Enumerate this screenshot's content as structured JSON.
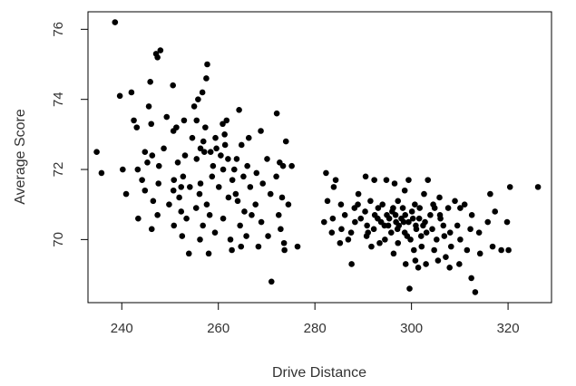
{
  "chart_data": {
    "type": "scatter",
    "title": "",
    "xlabel": "Drive Distance",
    "ylabel": "Average Score",
    "xlim": [
      233,
      329
    ],
    "ylim": [
      68.2,
      76.5
    ],
    "xticks": [
      240,
      260,
      280,
      300,
      320
    ],
    "yticks": [
      70,
      72,
      74,
      76
    ],
    "grid": false,
    "legend": "none",
    "marker_color": "#000000",
    "series": [
      {
        "points": [
          [
            238.6,
            76.2
          ],
          [
            248.0,
            75.4
          ],
          [
            247.1,
            75.3
          ],
          [
            247.4,
            75.2
          ],
          [
            257.7,
            75.0
          ],
          [
            257.5,
            74.6
          ],
          [
            245.9,
            74.5
          ],
          [
            250.6,
            74.4
          ],
          [
            256.7,
            74.2
          ],
          [
            242.0,
            74.2
          ],
          [
            239.6,
            74.1
          ],
          [
            255.8,
            74.0
          ],
          [
            255.0,
            73.8
          ],
          [
            245.6,
            73.8
          ],
          [
            264.3,
            73.7
          ],
          [
            272.1,
            73.6
          ],
          [
            249.3,
            73.5
          ],
          [
            242.5,
            73.4
          ],
          [
            255.5,
            73.4
          ],
          [
            252.9,
            73.4
          ],
          [
            246.1,
            73.3
          ],
          [
            260.9,
            73.3
          ],
          [
            261.7,
            73.4
          ],
          [
            257.3,
            73.2
          ],
          [
            243.1,
            73.2
          ],
          [
            250.7,
            73.1
          ],
          [
            268.8,
            73.1
          ],
          [
            266.3,
            72.9
          ],
          [
            259.4,
            72.9
          ],
          [
            261.3,
            73.0
          ],
          [
            274.0,
            72.8
          ],
          [
            264.8,
            72.7
          ],
          [
            256.3,
            72.6
          ],
          [
            248.7,
            72.6
          ],
          [
            257.1,
            72.5
          ],
          [
            244.8,
            72.5
          ],
          [
            258.4,
            72.5
          ],
          [
            234.8,
            72.5
          ],
          [
            260.5,
            72.4
          ],
          [
            253.1,
            72.4
          ],
          [
            246.3,
            72.4
          ],
          [
            263.8,
            72.3
          ],
          [
            255.5,
            72.3
          ],
          [
            270.1,
            72.3
          ],
          [
            262.0,
            72.3
          ],
          [
            272.7,
            72.2
          ],
          [
            245.3,
            72.2
          ],
          [
            251.6,
            72.2
          ],
          [
            247.7,
            72.1
          ],
          [
            273.4,
            72.1
          ],
          [
            266.0,
            72.1
          ],
          [
            275.2,
            72.1
          ],
          [
            258.9,
            72.1
          ],
          [
            240.2,
            72.0
          ],
          [
            243.3,
            72.0
          ],
          [
            261.0,
            72.0
          ],
          [
            267.9,
            71.9
          ],
          [
            235.8,
            71.9
          ],
          [
            252.7,
            71.8
          ],
          [
            258.7,
            71.8
          ],
          [
            265.2,
            71.8
          ],
          [
            272.0,
            71.8
          ],
          [
            244.2,
            71.7
          ],
          [
            250.8,
            71.7
          ],
          [
            262.9,
            71.7
          ],
          [
            269.2,
            71.6
          ],
          [
            256.3,
            71.6
          ],
          [
            247.6,
            71.6
          ],
          [
            252.3,
            71.5
          ],
          [
            266.6,
            71.5
          ],
          [
            254.1,
            71.5
          ],
          [
            260.1,
            71.5
          ],
          [
            244.8,
            71.4
          ],
          [
            250.7,
            71.4
          ],
          [
            270.8,
            71.3
          ],
          [
            263.6,
            71.3
          ],
          [
            240.9,
            71.3
          ],
          [
            256.1,
            71.3
          ],
          [
            273.2,
            71.2
          ],
          [
            251.9,
            71.2
          ],
          [
            262.1,
            71.2
          ],
          [
            246.5,
            71.1
          ],
          [
            264.0,
            71.1
          ],
          [
            257.6,
            71.0
          ],
          [
            249.8,
            71.0
          ],
          [
            267.7,
            71.0
          ],
          [
            274.5,
            71.0
          ],
          [
            255.4,
            70.9
          ],
          [
            252.3,
            70.8
          ],
          [
            265.4,
            70.8
          ],
          [
            247.4,
            70.7
          ],
          [
            266.9,
            70.7
          ],
          [
            272.5,
            70.7
          ],
          [
            258.2,
            70.7
          ],
          [
            243.4,
            70.6
          ],
          [
            253.4,
            70.6
          ],
          [
            261.0,
            70.6
          ],
          [
            268.9,
            70.5
          ],
          [
            250.8,
            70.4
          ],
          [
            264.5,
            70.4
          ],
          [
            256.8,
            70.4
          ],
          [
            272.9,
            70.3
          ],
          [
            246.2,
            70.3
          ],
          [
            259.3,
            70.2
          ],
          [
            252.5,
            70.1
          ],
          [
            270.3,
            70.1
          ],
          [
            265.8,
            70.1
          ],
          [
            262.5,
            70.0
          ],
          [
            256.2,
            70.0
          ],
          [
            273.6,
            69.9
          ],
          [
            276.4,
            69.8
          ],
          [
            268.3,
            69.8
          ],
          [
            264.7,
            69.8
          ],
          [
            262.8,
            69.7
          ],
          [
            253.9,
            69.6
          ],
          [
            258.0,
            69.6
          ],
          [
            273.7,
            69.7
          ],
          [
            271.0,
            68.8
          ],
          [
            263.3,
            72.0
          ],
          [
            259.6,
            72.6
          ],
          [
            251.3,
            73.2
          ],
          [
            256.9,
            72.8
          ],
          [
            254.6,
            72.9
          ],
          [
            261.4,
            72.7
          ],
          [
            282.3,
            71.9
          ],
          [
            284.3,
            71.7
          ],
          [
            290.5,
            71.8
          ],
          [
            292.3,
            71.7
          ],
          [
            294.8,
            71.7
          ],
          [
            299.4,
            71.7
          ],
          [
            303.4,
            71.7
          ],
          [
            283.9,
            71.5
          ],
          [
            296.5,
            71.6
          ],
          [
            298.6,
            71.4
          ],
          [
            316.3,
            71.3
          ],
          [
            320.4,
            71.5
          ],
          [
            326.2,
            71.5
          ],
          [
            289.0,
            71.3
          ],
          [
            302.6,
            71.3
          ],
          [
            305.8,
            71.2
          ],
          [
            309.0,
            71.1
          ],
          [
            311.0,
            71.0
          ],
          [
            282.6,
            71.1
          ],
          [
            285.4,
            71.0
          ],
          [
            291.5,
            71.1
          ],
          [
            294.0,
            71.0
          ],
          [
            297.2,
            71.1
          ],
          [
            300.7,
            71.0
          ],
          [
            304.5,
            71.0
          ],
          [
            307.6,
            70.9
          ],
          [
            288.2,
            70.9
          ],
          [
            293.1,
            70.9
          ],
          [
            296.0,
            70.8
          ],
          [
            301.7,
            70.9
          ],
          [
            310.1,
            70.9
          ],
          [
            317.3,
            70.8
          ],
          [
            286.2,
            70.7
          ],
          [
            290.4,
            70.8
          ],
          [
            298.7,
            70.7
          ],
          [
            303.9,
            70.7
          ],
          [
            312.5,
            70.7
          ],
          [
            283.7,
            70.6
          ],
          [
            292.4,
            70.7
          ],
          [
            295.4,
            70.6
          ],
          [
            297.9,
            70.6
          ],
          [
            300.3,
            70.6
          ],
          [
            306.0,
            70.6
          ],
          [
            281.9,
            70.5
          ],
          [
            288.3,
            70.5
          ],
          [
            293.7,
            70.5
          ],
          [
            296.8,
            70.5
          ],
          [
            299.4,
            70.5
          ],
          [
            302.4,
            70.4
          ],
          [
            309.5,
            70.4
          ],
          [
            315.8,
            70.5
          ],
          [
            319.8,
            70.5
          ],
          [
            285.5,
            70.3
          ],
          [
            290.8,
            70.4
          ],
          [
            294.4,
            70.4
          ],
          [
            297.4,
            70.4
          ],
          [
            301.0,
            70.3
          ],
          [
            304.3,
            70.3
          ],
          [
            308.0,
            70.2
          ],
          [
            312.2,
            70.3
          ],
          [
            283.5,
            70.2
          ],
          [
            287.5,
            70.2
          ],
          [
            292.2,
            70.3
          ],
          [
            295.8,
            70.2
          ],
          [
            298.6,
            70.2
          ],
          [
            303.1,
            70.2
          ],
          [
            306.8,
            70.1
          ],
          [
            314.0,
            70.2
          ],
          [
            286.9,
            70.0
          ],
          [
            290.7,
            70.1
          ],
          [
            294.5,
            70.0
          ],
          [
            299.8,
            70.0
          ],
          [
            305.2,
            70.0
          ],
          [
            310.1,
            70.0
          ],
          [
            285.2,
            69.9
          ],
          [
            293.4,
            69.9
          ],
          [
            297.2,
            69.9
          ],
          [
            302.1,
            69.8
          ],
          [
            308.2,
            69.8
          ],
          [
            316.8,
            69.8
          ],
          [
            291.7,
            69.8
          ],
          [
            300.5,
            69.7
          ],
          [
            304.7,
            69.7
          ],
          [
            311.5,
            69.7
          ],
          [
            318.6,
            69.7
          ],
          [
            320.1,
            69.7
          ],
          [
            296.3,
            69.6
          ],
          [
            307.1,
            69.5
          ],
          [
            314.2,
            69.6
          ],
          [
            300.8,
            69.4
          ],
          [
            305.5,
            69.4
          ],
          [
            309.9,
            69.3
          ],
          [
            298.8,
            69.3
          ],
          [
            303.0,
            69.3
          ],
          [
            301.4,
            69.2
          ],
          [
            307.9,
            69.2
          ],
          [
            287.6,
            69.3
          ],
          [
            312.4,
            68.9
          ],
          [
            299.6,
            68.6
          ],
          [
            313.2,
            68.5
          ],
          [
            294.9,
            70.7
          ],
          [
            296.2,
            70.9
          ],
          [
            298.2,
            70.9
          ],
          [
            300.1,
            70.8
          ],
          [
            301.6,
            70.6
          ],
          [
            297.1,
            70.3
          ],
          [
            299.1,
            70.1
          ],
          [
            295.2,
            70.4
          ],
          [
            293.0,
            70.6
          ],
          [
            298.4,
            70.5
          ],
          [
            300.9,
            70.4
          ],
          [
            296.7,
            70.7
          ],
          [
            302.8,
            70.5
          ],
          [
            304.8,
            70.9
          ],
          [
            306.6,
            70.4
          ],
          [
            289.5,
            70.6
          ],
          [
            291.0,
            70.2
          ],
          [
            288.9,
            71.0
          ],
          [
            302.0,
            70.1
          ],
          [
            305.9,
            70.7
          ]
        ]
      }
    ]
  }
}
